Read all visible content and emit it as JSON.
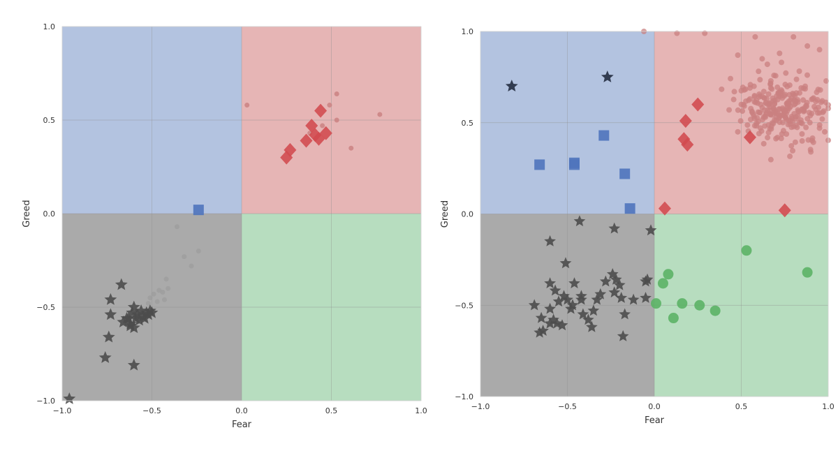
{
  "colors": {
    "q_fear": "#b3c3e0",
    "q_greed": "#e6b5b5",
    "q_bear": "#aaaaaa",
    "q_bull": "#b7ddbf",
    "blue": "#4f74bd",
    "red": "#d24a4f",
    "green": "#5cb366",
    "dark": "#4c4c4c",
    "navy": "#2b3549",
    "light_red": "#c98080",
    "light_gray": "#9c9c9c",
    "grid": "#8f8f8f"
  },
  "chart_data": [
    {
      "type": "scatter",
      "title": "",
      "xlabel": "Fear",
      "ylabel": "Greed",
      "xlim": [
        -1,
        1
      ],
      "ylim": [
        -1,
        1
      ],
      "xticks": [
        "−1.0",
        "−0.5",
        "0.0",
        "0.5",
        "1.0"
      ],
      "yticks": [
        "−1.0",
        "−0.5",
        "0.0",
        "0.5",
        "1.0"
      ],
      "grid": true,
      "series": [
        {
          "name": "light-red-points",
          "marker": "circle",
          "size": 7,
          "color": "light_red",
          "opacity": 0.8,
          "points": [
            [
              0.03,
              0.58
            ],
            [
              0.49,
              0.58
            ],
            [
              0.53,
              0.64
            ],
            [
              0.77,
              0.53
            ],
            [
              0.61,
              0.35
            ],
            [
              0.53,
              0.5
            ],
            [
              0.45,
              0.47
            ],
            [
              0.38,
              0.43
            ]
          ]
        },
        {
          "name": "red-diamonds",
          "marker": "diamond",
          "size": 19,
          "color": "red",
          "opacity": 0.88,
          "points": [
            [
              0.44,
              0.55
            ],
            [
              0.39,
              0.47
            ],
            [
              0.27,
              0.34
            ],
            [
              0.25,
              0.3
            ],
            [
              0.36,
              0.39
            ],
            [
              0.41,
              0.42
            ],
            [
              0.43,
              0.4
            ],
            [
              0.47,
              0.43
            ]
          ]
        },
        {
          "name": "blue-squares",
          "marker": "square",
          "size": 15,
          "color": "blue",
          "opacity": 0.9,
          "points": [
            [
              -0.24,
              0.02
            ]
          ]
        },
        {
          "name": "light-gray-points",
          "marker": "circle",
          "size": 7,
          "color": "light_gray",
          "opacity": 0.75,
          "points": [
            [
              -0.36,
              -0.07
            ],
            [
              -0.24,
              -0.2
            ],
            [
              -0.32,
              -0.23
            ],
            [
              -0.28,
              -0.28
            ],
            [
              -0.42,
              -0.35
            ],
            [
              -0.41,
              -0.4
            ],
            [
              -0.44,
              -0.42
            ],
            [
              -0.46,
              -0.41
            ],
            [
              -0.49,
              -0.43
            ],
            [
              -0.51,
              -0.45
            ],
            [
              -0.43,
              -0.46
            ],
            [
              -0.47,
              -0.47
            ],
            [
              -0.52,
              -0.48
            ]
          ]
        },
        {
          "name": "dark-stars",
          "marker": "star",
          "size": 17,
          "color": "dark",
          "opacity": 0.9,
          "points": [
            [
              -0.67,
              -0.38
            ],
            [
              -0.73,
              -0.46
            ],
            [
              -0.6,
              -0.5
            ],
            [
              -0.73,
              -0.54
            ],
            [
              -0.64,
              -0.56
            ],
            [
              -0.66,
              -0.58
            ],
            [
              -0.62,
              -0.59
            ],
            [
              -0.6,
              -0.61
            ],
            [
              -0.57,
              -0.57
            ],
            [
              -0.55,
              -0.55
            ],
            [
              -0.53,
              -0.53
            ],
            [
              -0.51,
              -0.52
            ],
            [
              -0.56,
              -0.52
            ],
            [
              -0.58,
              -0.54
            ],
            [
              -0.63,
              -0.56
            ],
            [
              -0.59,
              -0.56
            ],
            [
              -0.61,
              -0.53
            ],
            [
              -0.54,
              -0.56
            ],
            [
              -0.52,
              -0.54
            ],
            [
              -0.5,
              -0.53
            ],
            [
              -0.74,
              -0.66
            ],
            [
              -0.76,
              -0.77
            ],
            [
              -0.6,
              -0.81
            ],
            [
              -0.96,
              -0.99
            ],
            [
              -0.62,
              -0.6
            ]
          ]
        }
      ]
    },
    {
      "type": "scatter",
      "title": "",
      "xlabel": "Fear",
      "ylabel": "Greed",
      "xlim": [
        -1,
        1
      ],
      "ylim": [
        -1,
        1
      ],
      "xticks": [
        "−1.0",
        "−0.5",
        "0.0",
        "0.5",
        "1.0"
      ],
      "yticks": [
        "−1.0",
        "−0.5",
        "0.0",
        "0.5",
        "1.0"
      ],
      "grid": true,
      "series": [
        {
          "name": "light-red-cloud",
          "marker": "circle",
          "size": 8,
          "color": "light_red",
          "opacity": 0.75,
          "cloud": {
            "center": [
              0.74,
              0.58
            ],
            "spread": [
              0.13,
              0.09
            ],
            "count": 260
          },
          "points": [
            [
              -0.06,
              1.0
            ],
            [
              0.13,
              0.99
            ],
            [
              0.29,
              0.99
            ],
            [
              0.58,
              0.97
            ],
            [
              0.8,
              0.97
            ],
            [
              0.48,
              0.87
            ],
            [
              0.62,
              0.85
            ],
            [
              0.95,
              0.9
            ],
            [
              0.46,
              0.67
            ],
            [
              0.55,
              0.63
            ],
            [
              0.5,
              0.6
            ],
            [
              0.43,
              0.57
            ],
            [
              0.48,
              0.45
            ],
            [
              0.65,
              0.82
            ],
            [
              0.95,
              0.47
            ],
            [
              0.9,
              0.34
            ],
            [
              0.85,
              0.4
            ],
            [
              0.98,
              0.45
            ],
            [
              0.72,
              0.88
            ],
            [
              0.88,
              0.92
            ]
          ]
        },
        {
          "name": "red-diamonds",
          "marker": "diamond",
          "size": 19,
          "color": "red",
          "opacity": 0.88,
          "points": [
            [
              0.25,
              0.6
            ],
            [
              0.18,
              0.51
            ],
            [
              0.17,
              0.41
            ],
            [
              0.19,
              0.38
            ],
            [
              0.55,
              0.42
            ],
            [
              0.06,
              0.03
            ],
            [
              0.75,
              0.02
            ]
          ]
        },
        {
          "name": "blue-squares",
          "marker": "square",
          "size": 15,
          "color": "blue",
          "opacity": 0.9,
          "points": [
            [
              -0.66,
              0.27
            ],
            [
              -0.46,
              0.28
            ],
            [
              -0.46,
              0.27
            ],
            [
              -0.29,
              0.43
            ],
            [
              -0.17,
              0.22
            ],
            [
              -0.14,
              0.03
            ]
          ]
        },
        {
          "name": "navy-stars",
          "marker": "star",
          "size": 17,
          "color": "navy",
          "opacity": 0.95,
          "points": [
            [
              -0.82,
              0.7
            ],
            [
              -0.27,
              0.75
            ]
          ]
        },
        {
          "name": "green-circles",
          "marker": "circle",
          "size": 15,
          "color": "green",
          "opacity": 0.9,
          "points": [
            [
              0.53,
              -0.2
            ],
            [
              0.88,
              -0.32
            ],
            [
              0.08,
              -0.33
            ],
            [
              0.05,
              -0.38
            ],
            [
              0.01,
              -0.49
            ],
            [
              0.11,
              -0.57
            ],
            [
              0.16,
              -0.49
            ],
            [
              0.26,
              -0.5
            ],
            [
              0.35,
              -0.53
            ]
          ]
        },
        {
          "name": "dark-stars",
          "marker": "star",
          "size": 16,
          "color": "dark",
          "opacity": 0.9,
          "points": [
            [
              -0.43,
              -0.04
            ],
            [
              -0.23,
              -0.08
            ],
            [
              -0.02,
              -0.09
            ],
            [
              -0.6,
              -0.15
            ],
            [
              -0.51,
              -0.27
            ],
            [
              -0.6,
              -0.38
            ],
            [
              -0.57,
              -0.42
            ],
            [
              -0.46,
              -0.38
            ],
            [
              -0.42,
              -0.45
            ],
            [
              -0.52,
              -0.45
            ],
            [
              -0.5,
              -0.47
            ],
            [
              -0.55,
              -0.48
            ],
            [
              -0.6,
              -0.52
            ],
            [
              -0.65,
              -0.57
            ],
            [
              -0.64,
              -0.64
            ],
            [
              -0.58,
              -0.58
            ],
            [
              -0.56,
              -0.6
            ],
            [
              -0.53,
              -0.61
            ],
            [
              -0.47,
              -0.5
            ],
            [
              -0.42,
              -0.47
            ],
            [
              -0.41,
              -0.55
            ],
            [
              -0.38,
              -0.58
            ],
            [
              -0.35,
              -0.53
            ],
            [
              -0.33,
              -0.47
            ],
            [
              -0.31,
              -0.44
            ],
            [
              -0.28,
              -0.37
            ],
            [
              -0.24,
              -0.33
            ],
            [
              -0.22,
              -0.36
            ],
            [
              -0.23,
              -0.43
            ],
            [
              -0.2,
              -0.39
            ],
            [
              -0.19,
              -0.46
            ],
            [
              -0.17,
              -0.55
            ],
            [
              -0.12,
              -0.47
            ],
            [
              -0.05,
              -0.37
            ],
            [
              -0.04,
              -0.36
            ],
            [
              -0.05,
              -0.46
            ],
            [
              -0.69,
              -0.5
            ],
            [
              -0.66,
              -0.65
            ],
            [
              -0.6,
              -0.6
            ],
            [
              -0.48,
              -0.52
            ],
            [
              -0.36,
              -0.62
            ],
            [
              -0.18,
              -0.67
            ]
          ]
        }
      ]
    }
  ]
}
